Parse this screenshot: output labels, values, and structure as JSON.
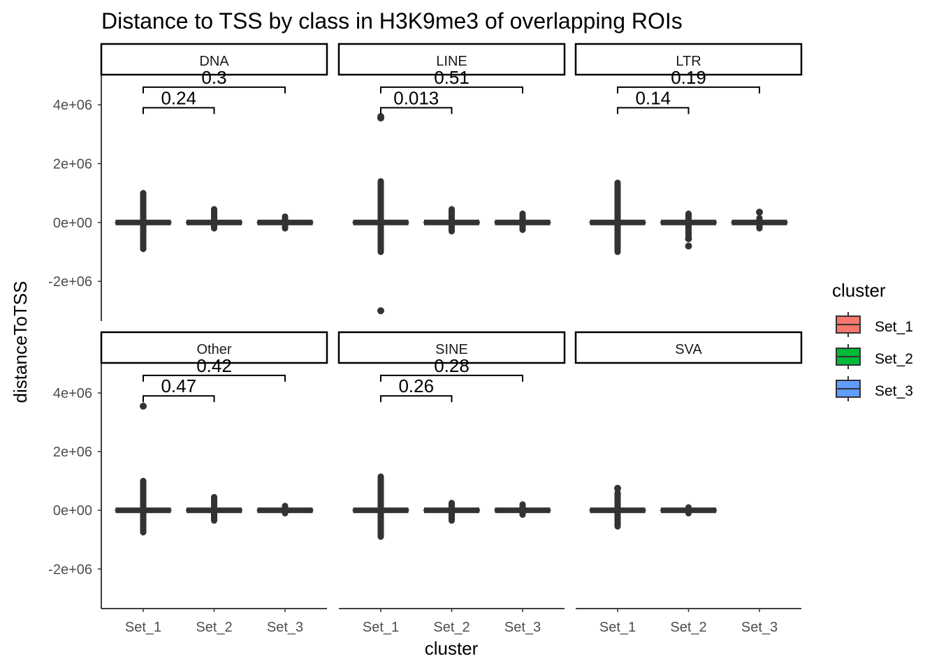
{
  "chart_data": {
    "type": "boxplot",
    "title": "Distance to TSS by class in H3K9me3 of overlapping ROIs",
    "xlabel": "cluster",
    "ylabel": "distanceToTSS",
    "ylim": [
      -3350000,
      5000000
    ],
    "yticks": [
      -2000000,
      0,
      2000000,
      4000000
    ],
    "ytick_labels": [
      "-2e+06",
      "0e+00",
      "2e+06",
      "4e+06"
    ],
    "categories": [
      "Set_1",
      "Set_2",
      "Set_3"
    ],
    "legend": {
      "title": "cluster",
      "position": "right",
      "entries": [
        {
          "label": "Set_1",
          "color": "#F8766D"
        },
        {
          "label": "Set_2",
          "color": "#00BA38"
        },
        {
          "label": "Set_3",
          "color": "#619CFF"
        }
      ]
    },
    "panels": [
      {
        "name": "DNA",
        "boxes": [
          {
            "set": "Set_1",
            "median": 0,
            "min": -900000,
            "max": 1000000,
            "outliers": []
          },
          {
            "set": "Set_2",
            "median": 0,
            "min": -200000,
            "max": 450000,
            "outliers": []
          },
          {
            "set": "Set_3",
            "median": 0,
            "min": -200000,
            "max": 200000,
            "outliers": []
          }
        ],
        "comparisons": [
          {
            "groups": [
              "Set_1",
              "Set_2"
            ],
            "p": "0.24",
            "y": 3900000
          },
          {
            "groups": [
              "Set_1",
              "Set_3"
            ],
            "p": "0.3",
            "y": 4600000
          }
        ]
      },
      {
        "name": "LINE",
        "boxes": [
          {
            "set": "Set_1",
            "median": 0,
            "min": -1000000,
            "max": 1400000,
            "outliers": [
              3550000,
              3600000,
              -3000000
            ]
          },
          {
            "set": "Set_2",
            "median": 0,
            "min": -300000,
            "max": 450000,
            "outliers": []
          },
          {
            "set": "Set_3",
            "median": 0,
            "min": -250000,
            "max": 300000,
            "outliers": []
          }
        ],
        "comparisons": [
          {
            "groups": [
              "Set_1",
              "Set_2"
            ],
            "p": "0.013",
            "y": 3900000
          },
          {
            "groups": [
              "Set_1",
              "Set_3"
            ],
            "p": "0.51",
            "y": 4600000
          }
        ]
      },
      {
        "name": "LTR",
        "boxes": [
          {
            "set": "Set_1",
            "median": 0,
            "min": -1000000,
            "max": 1350000,
            "outliers": []
          },
          {
            "set": "Set_2",
            "median": 0,
            "min": -450000,
            "max": 300000,
            "outliers": [
              -550000,
              -800000
            ]
          },
          {
            "set": "Set_3",
            "median": 0,
            "min": -200000,
            "max": 150000,
            "outliers": [
              350000
            ]
          }
        ],
        "comparisons": [
          {
            "groups": [
              "Set_1",
              "Set_2"
            ],
            "p": "0.14",
            "y": 3900000
          },
          {
            "groups": [
              "Set_1",
              "Set_3"
            ],
            "p": "0.19",
            "y": 4600000
          }
        ]
      },
      {
        "name": "Other",
        "boxes": [
          {
            "set": "Set_1",
            "median": 0,
            "min": -750000,
            "max": 1000000,
            "outliers": [
              3550000
            ]
          },
          {
            "set": "Set_2",
            "median": 0,
            "min": -350000,
            "max": 450000,
            "outliers": []
          },
          {
            "set": "Set_3",
            "median": 0,
            "min": -100000,
            "max": 150000,
            "outliers": []
          }
        ],
        "comparisons": [
          {
            "groups": [
              "Set_1",
              "Set_2"
            ],
            "p": "0.47",
            "y": 3900000
          },
          {
            "groups": [
              "Set_1",
              "Set_3"
            ],
            "p": "0.42",
            "y": 4600000
          }
        ]
      },
      {
        "name": "SINE",
        "boxes": [
          {
            "set": "Set_1",
            "median": 0,
            "min": -900000,
            "max": 1150000,
            "outliers": []
          },
          {
            "set": "Set_2",
            "median": 0,
            "min": -350000,
            "max": 250000,
            "outliers": []
          },
          {
            "set": "Set_3",
            "median": 0,
            "min": -150000,
            "max": 200000,
            "outliers": []
          }
        ],
        "comparisons": [
          {
            "groups": [
              "Set_1",
              "Set_2"
            ],
            "p": "0.26",
            "y": 3900000
          },
          {
            "groups": [
              "Set_1",
              "Set_3"
            ],
            "p": "0.28",
            "y": 4600000
          }
        ]
      },
      {
        "name": "SVA",
        "boxes": [
          {
            "set": "Set_1",
            "median": 0,
            "min": -550000,
            "max": 600000,
            "outliers": [
              750000
            ]
          },
          {
            "set": "Set_2",
            "median": 0,
            "min": -100000,
            "max": 100000,
            "outliers": []
          }
        ],
        "comparisons": []
      }
    ]
  }
}
